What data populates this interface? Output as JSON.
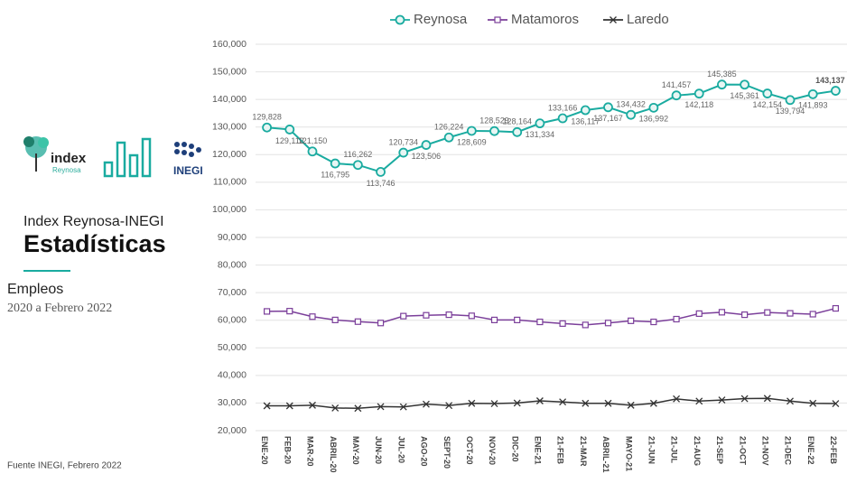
{
  "sidebar": {
    "logo_text": "index",
    "logo_sub": "Reynosa",
    "inegi": "INEGI",
    "heading": "Index Reynosa-INEGI",
    "title": "Estadísticas",
    "subject": "Empleos",
    "period": "2020 a Febrero 2022",
    "source": "Fuente INEGI, Febrero 2022"
  },
  "chart_data": {
    "type": "line",
    "categories": [
      "ENE-20",
      "FEB-20",
      "MAR-20",
      "ABRIL-20",
      "MAY-20",
      "JUN-20",
      "JUL-20",
      "AGO-20",
      "SEPT-20",
      "OCT-20",
      "NOV-20",
      "DIC-20",
      "ENE-21",
      "21-FEB",
      "21-MAR",
      "ABRIL-21",
      "MAYO-21",
      "21-JUN",
      "21-JUL",
      "21-AUG",
      "21-SEP",
      "21-OCT",
      "21-NOV",
      "21-DEC",
      "ENE-22",
      "22-FEB"
    ],
    "series": [
      {
        "name": "Reynosa",
        "color": "#1aaba0",
        "marker": "circle",
        "values": [
          129828,
          129112,
          121150,
          116795,
          116262,
          113746,
          120734,
          123506,
          126224,
          128609,
          128529,
          128164,
          131334,
          133166,
          136117,
          137167,
          134432,
          136992,
          141457,
          142118,
          145385,
          145361,
          142154,
          139794,
          141893,
          143137
        ],
        "value_labels": [
          "129,828",
          "129,112",
          "121,150",
          "116,795",
          "116,262",
          "113,746",
          "120,734",
          "123,506",
          "126,224",
          "128,609",
          "128,529",
          "128,164",
          "131,334",
          "133,166",
          "136,117",
          "137,167",
          "134,432",
          "136,992",
          "141,457",
          "142,118",
          "145,385",
          "145,361",
          "142,154",
          "139,794",
          "141,893",
          "143,137"
        ]
      },
      {
        "name": "Matamoros",
        "color": "#7b3f9a",
        "marker": "square",
        "values": [
          63200,
          63300,
          61300,
          60100,
          59500,
          59000,
          61500,
          61800,
          62000,
          61600,
          60100,
          60100,
          59400,
          58800,
          58300,
          59000,
          59800,
          59400,
          60400,
          62400,
          62900,
          62000,
          62800,
          62500,
          62200,
          64300
        ]
      },
      {
        "name": "Laredo",
        "color": "#333333",
        "marker": "x",
        "values": [
          29000,
          29000,
          29200,
          28200,
          28100,
          28700,
          28600,
          29600,
          29100,
          29900,
          29800,
          30000,
          30800,
          30400,
          29900,
          29900,
          29200,
          29900,
          31500,
          30700,
          31100,
          31600,
          31700,
          30700,
          29900,
          29800
        ]
      }
    ],
    "ylim": [
      20000,
      160000
    ],
    "yticks": [
      {
        "value": 20000,
        "label": "20,000"
      },
      {
        "value": 30000,
        "label": "30,000"
      },
      {
        "value": 40000,
        "label": "40,000"
      },
      {
        "value": 50000,
        "label": "50,000"
      },
      {
        "value": 60000,
        "label": "60,000"
      },
      {
        "value": 70000,
        "label": "70,000"
      },
      {
        "value": 80000,
        "label": "80,000"
      },
      {
        "value": 90000,
        "label": "90,000"
      },
      {
        "value": 100000,
        "label": "100,000"
      },
      {
        "value": 110000,
        "label": "110,000"
      },
      {
        "value": 120000,
        "label": "120,000"
      },
      {
        "value": 130000,
        "label": "130,000"
      },
      {
        "value": 140000,
        "label": "140,000"
      },
      {
        "value": 150000,
        "label": "150,000"
      },
      {
        "value": 160000,
        "label": "160,000"
      }
    ],
    "grid": true,
    "legend": "top"
  }
}
